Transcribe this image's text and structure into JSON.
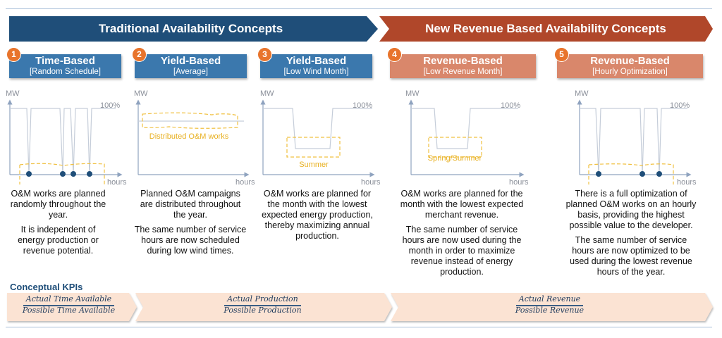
{
  "banners": {
    "traditional": "Traditional Availability Concepts",
    "revenue": "New Revenue Based Availability Concepts"
  },
  "colors": {
    "traditional_banner": "#1f4e79",
    "revenue_banner": "#b0472a",
    "blue_header": "#3b78ad",
    "salmon_header": "#d9876b",
    "badge": "#e8742c",
    "highlight": "#f0c040",
    "kpi_fill": "#fbe3d3"
  },
  "panels": [
    {
      "number": "1",
      "title": "Time-Based",
      "subtitle": "[Random Schedule]",
      "chart": {
        "y_label": "MW",
        "x_label": "hours",
        "level_label": "100%"
      },
      "description": [
        "O&M works are planned randomly throughout the year.",
        "It is independent of energy production or revenue potential."
      ]
    },
    {
      "number": "2",
      "title": "Yield-Based",
      "subtitle": "[Average]",
      "chart": {
        "y_label": "MW",
        "x_label": "hours",
        "annotation": "Distributed O&M works"
      },
      "description": [
        "Planned O&M campaigns are distributed throughout the year.",
        "The same number of service hours are now scheduled during low wind times."
      ]
    },
    {
      "number": "3",
      "title": "Yield-Based",
      "subtitle": "[Low Wind Month]",
      "chart": {
        "y_label": "MW",
        "x_label": "hours",
        "level_label": "100%",
        "annotation": "Summer"
      },
      "description": [
        "O&M works are planned for the month with the lowest expected energy production, thereby maximizing annual production."
      ]
    },
    {
      "number": "4",
      "title": "Revenue-Based",
      "subtitle": "[Low Revenue Month]",
      "chart": {
        "y_label": "MW",
        "x_label": "hours",
        "level_label": "100%",
        "annotation": "Spring/Summer"
      },
      "description": [
        "O&M works are planned for the month with the lowest expected merchant revenue.",
        "The same number of service hours are now used during the month in order to maximize revenue instead of energy production."
      ]
    },
    {
      "number": "5",
      "title": "Revenue-Based",
      "subtitle": "[Hourly Optimization]",
      "chart": {
        "y_label": "MW",
        "x_label": "hours",
        "level_label": "100%"
      },
      "description": [
        "There is a full optimization of planned O&M works on an hourly basis, providing the highest possible value to the developer.",
        "The same number of service hours are now optimized to be used during the lowest revenue hours of the year."
      ]
    }
  ],
  "kpis": {
    "title": "Conceptual KPIs",
    "items": [
      {
        "numerator": "Actual Time Available",
        "denominator": "Possible Time Available"
      },
      {
        "numerator": "Actual Production",
        "denominator": "Possible Production"
      },
      {
        "numerator": "Actual Revenue",
        "denominator": "Possible Revenue"
      }
    ]
  }
}
